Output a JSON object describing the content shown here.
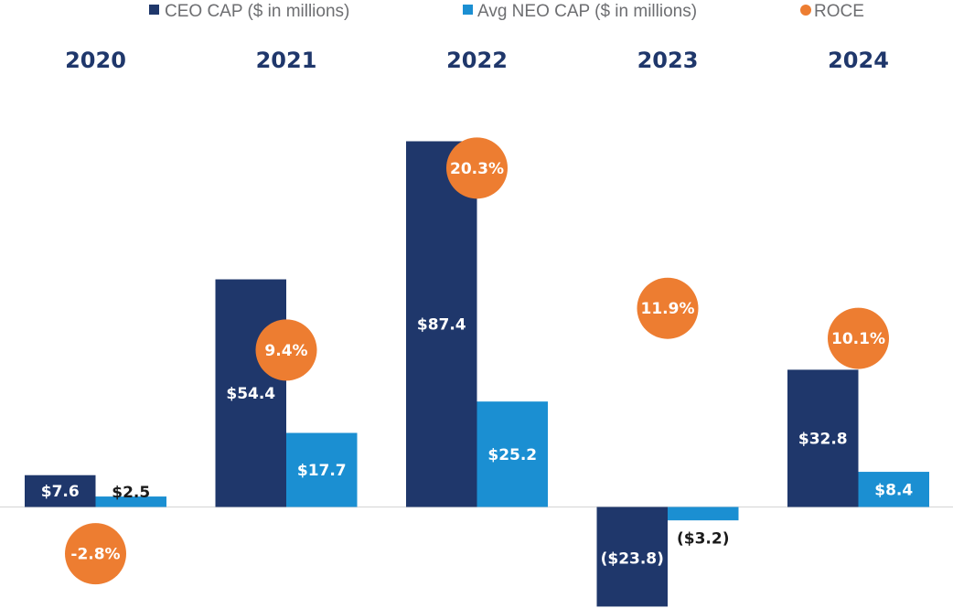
{
  "chart_data": {
    "type": "bar",
    "title": "",
    "xlabel": "",
    "ylabel": "",
    "categories": [
      "2020",
      "2021",
      "2022",
      "2023",
      "2024"
    ],
    "series": [
      {
        "name": "CEO CAP ($ in millions)",
        "kind": "bar",
        "color": "#1f376b",
        "values": [
          7.6,
          54.4,
          87.4,
          -23.8,
          32.8
        ],
        "labels": [
          "$7.6",
          "$54.4",
          "$87.4",
          "($23.8)",
          "$32.8"
        ]
      },
      {
        "name": "Avg NEO CAP ($ in millions)",
        "kind": "bar",
        "color": "#1b8fd2",
        "values": [
          2.5,
          17.7,
          25.2,
          -3.2,
          8.4
        ],
        "labels": [
          "$2.5",
          "$17.7",
          "$25.2",
          "($3.2)",
          "$8.4"
        ]
      },
      {
        "name": "ROCE",
        "kind": "point",
        "color": "#ed7d31",
        "values": [
          -2.8,
          9.4,
          20.3,
          11.9,
          10.1
        ],
        "labels": [
          "-2.8%",
          "9.4%",
          "20.3%",
          "11.9%",
          "10.1%"
        ]
      }
    ],
    "legend": {
      "placement": "top-center",
      "entries": [
        {
          "label": "CEO CAP ($ in millions)",
          "marker": "square",
          "color": "#1f376b"
        },
        {
          "label": "Avg NEO CAP ($ in millions)",
          "marker": "square",
          "color": "#1b8fd2"
        },
        {
          "label": "ROCE",
          "marker": "circle",
          "color": "#ed7d31"
        }
      ]
    },
    "grid": false,
    "baseline": 0,
    "axes_visible": false
  },
  "colors": {
    "ceo": "#1f376b",
    "neo": "#1b8fd2",
    "roce": "#ed7d31",
    "year_text": "#1f376b",
    "legend_text": "#6d6e71",
    "baseline": "#d9d9d9",
    "label_dark": "#1a1a1a",
    "label_light": "#ffffff"
  }
}
